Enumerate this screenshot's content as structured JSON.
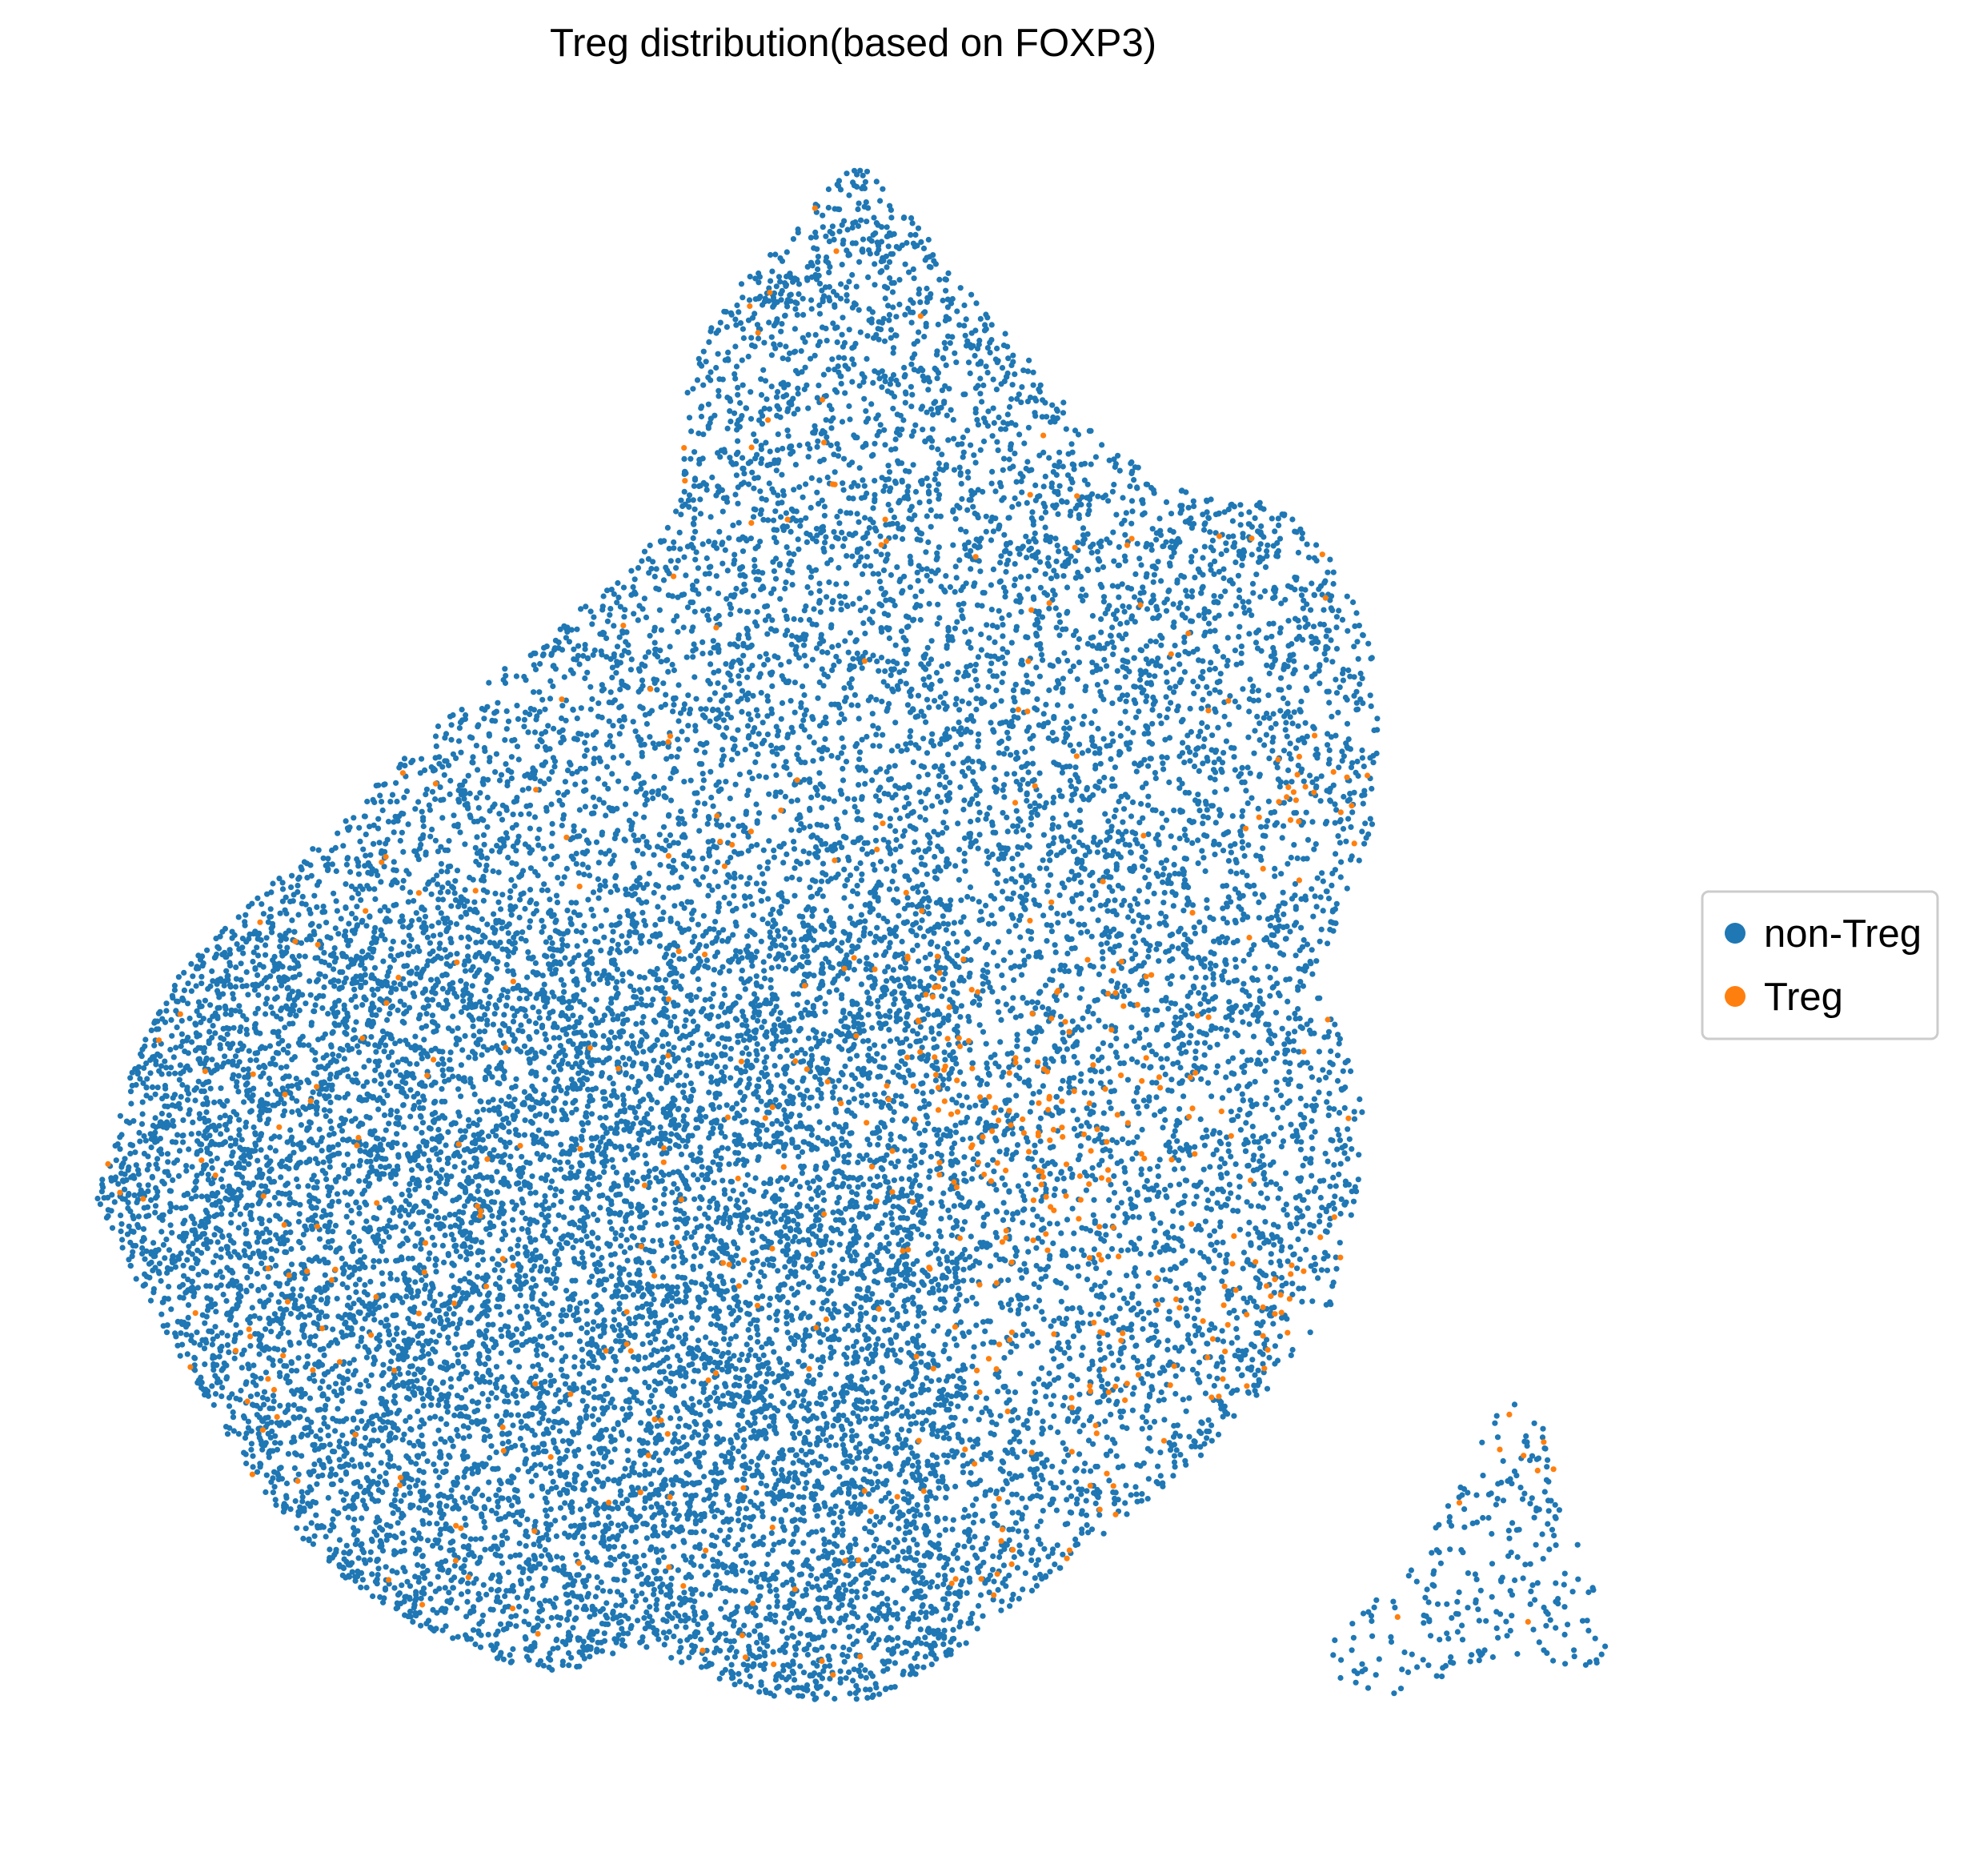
{
  "chart_data": {
    "type": "scatter",
    "title": "Treg distribution(based on FOXP3)",
    "xlabel": "",
    "ylabel": "",
    "axes_visible": false,
    "grid": false,
    "legend_position": "right-center",
    "legend_frame": true,
    "note": "Single-cell embedding scatter (~20000 cells). Approximate point cloud outline and Treg concentration regions estimated from the image; axis units not shown.",
    "series": [
      {
        "name": "non-Treg",
        "color": "#1f77b4",
        "approx_point_count": 19000
      },
      {
        "name": "Treg",
        "color": "#ff7f0e",
        "approx_point_count": 800
      }
    ]
  }
}
